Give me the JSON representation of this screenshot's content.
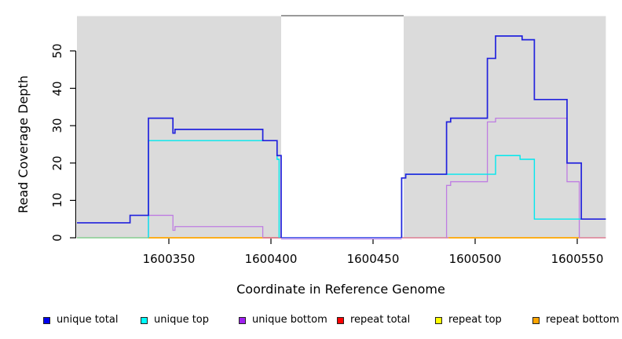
{
  "chart_data": {
    "type": "line",
    "subtype": "step-coverage-plot",
    "xlabel": "Coordinate in Reference Genome",
    "ylabel": "Read Coverage Depth",
    "xlim": [
      1600305,
      1600564
    ],
    "ylim": [
      0,
      59.5
    ],
    "x_ticks": [
      1600350,
      1600400,
      1600450,
      1600500,
      1600550
    ],
    "y_ticks": [
      0,
      10,
      20,
      30,
      40,
      50
    ],
    "grid": false,
    "legend_position": "bottom-horizontal",
    "shaded_regions": [
      {
        "from": 1600305,
        "to": 1600405,
        "color": "#DBDBDB"
      },
      {
        "from": 1600465,
        "to": 1600564,
        "color": "#DBDBDB"
      }
    ],
    "gap_top_line": {
      "from": 1600405,
      "to": 1600465,
      "color": "#8C8C8C"
    },
    "series": [
      {
        "name": "unique bottom",
        "color": "#BE7CE2",
        "lw": 1.3,
        "end": 1600564,
        "steps": [
          [
            1600305,
            0
          ],
          [
            1600340,
            6
          ],
          [
            1600352,
            2
          ],
          [
            1600353,
            3
          ],
          [
            1600396,
            0
          ],
          [
            1600486,
            14
          ],
          [
            1600488,
            15
          ],
          [
            1600506,
            31
          ],
          [
            1600510,
            32
          ],
          [
            1600545,
            15
          ],
          [
            1600551,
            0
          ]
        ]
      },
      {
        "name": "unique top",
        "color": "#00E8EE",
        "lw": 1.4,
        "end": 1600564,
        "steps": [
          [
            1600305,
            0
          ],
          [
            1600340,
            26
          ],
          [
            1600403,
            21
          ],
          [
            1600404,
            0
          ],
          [
            1600464,
            16
          ],
          [
            1600466,
            17
          ],
          [
            1600510,
            22
          ],
          [
            1600522,
            21
          ],
          [
            1600529,
            5
          ]
        ]
      },
      {
        "name": "unique total",
        "color": "#2222DD",
        "lw": 1.7,
        "end": 1600564,
        "steps": [
          [
            1600305,
            4
          ],
          [
            1600331,
            6
          ],
          [
            1600340,
            32
          ],
          [
            1600352,
            28
          ],
          [
            1600353,
            29
          ],
          [
            1600396,
            26
          ],
          [
            1600403,
            22
          ],
          [
            1600405,
            0
          ],
          [
            1600464,
            16
          ],
          [
            1600466,
            17
          ],
          [
            1600486,
            31
          ],
          [
            1600488,
            32
          ],
          [
            1600506,
            48
          ],
          [
            1600510,
            54
          ],
          [
            1600523,
            53
          ],
          [
            1600529,
            37
          ],
          [
            1600545,
            20
          ],
          [
            1600552,
            5
          ]
        ]
      }
    ],
    "baseline_segments": [
      {
        "from": 1600305,
        "to": 1600340,
        "color": "#85CD90",
        "lw": 1.6
      },
      {
        "from": 1600340,
        "to": 1600396,
        "color": "#FFA500",
        "lw": 1.8
      },
      {
        "from": 1600396,
        "to": 1600405,
        "color": "#DC5F6E",
        "lw": 1.4
      },
      {
        "from": 1600405,
        "to": 1600464,
        "color": "#BD86E8",
        "lw": 1.2,
        "dy": 1.5
      },
      {
        "from": 1600405,
        "to": 1600464,
        "color": "#4A5BE8",
        "lw": 1.5,
        "dy": -0.3
      },
      {
        "from": 1600464,
        "to": 1600487,
        "color": "#DC7D92",
        "lw": 1.4
      },
      {
        "from": 1600487,
        "to": 1600551,
        "color": "#FFA500",
        "lw": 1.8
      },
      {
        "from": 1600551,
        "to": 1600564,
        "color": "#DC7D92",
        "lw": 1.4
      }
    ],
    "legend": [
      {
        "label": "unique total",
        "color": "#0000EE"
      },
      {
        "label": "unique top",
        "color": "#00FFFF"
      },
      {
        "label": "unique bottom",
        "color": "#A020F0"
      },
      {
        "label": "repeat total",
        "color": "#FF0000"
      },
      {
        "label": "repeat top",
        "color": "#FFFF00"
      },
      {
        "label": "repeat bottom",
        "color": "#FFA500"
      }
    ]
  }
}
